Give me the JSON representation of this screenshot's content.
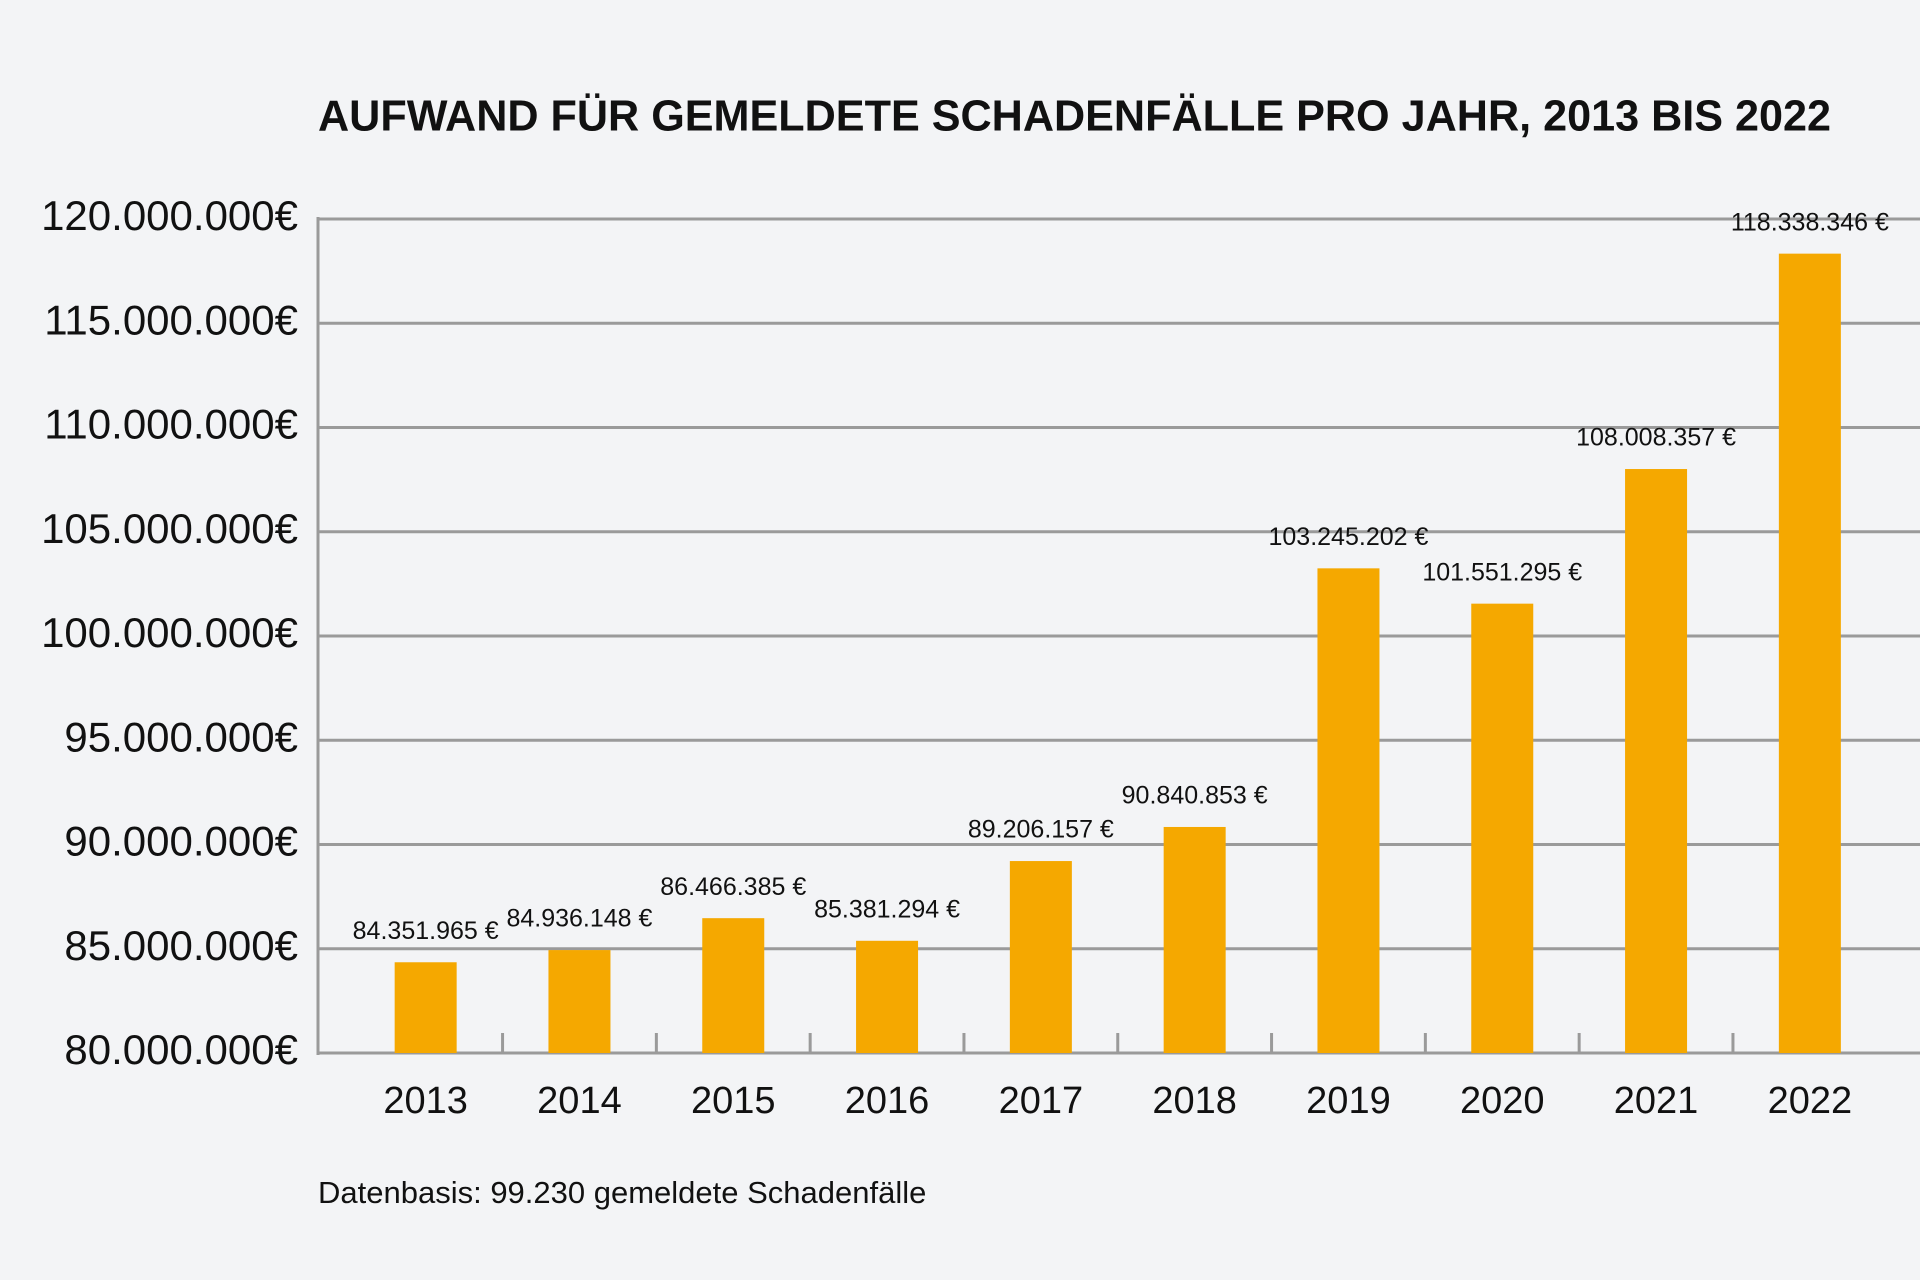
{
  "chart_data": {
    "type": "bar",
    "title": "AUFWAND FÜR GEMELDETE SCHADENFÄLLE PRO JAHR, 2013 BIS 2022",
    "categories": [
      "2013",
      "2014",
      "2015",
      "2016",
      "2017",
      "2018",
      "2019",
      "2020",
      "2021",
      "2022"
    ],
    "values": [
      84351965,
      84936148,
      86466385,
      85381294,
      89206157,
      90840853,
      103245202,
      101551295,
      108008357,
      118338346
    ],
    "value_labels": [
      "84.351.965 €",
      "84.936.148 €",
      "86.466.385 €",
      "85.381.294 €",
      "89.206.157 €",
      "90.840.853 €",
      "103.245.202 €",
      "101.551.295 €",
      "108.008.357 €",
      "118.338.346 €"
    ],
    "color": "#f5a800",
    "ylim": [
      80000000,
      120000000
    ],
    "yticks": [
      {
        "value": 80000000,
        "label": "80.000.000€"
      },
      {
        "value": 85000000,
        "label": "85.000.000€"
      },
      {
        "value": 90000000,
        "label": "90.000.000€"
      },
      {
        "value": 95000000,
        "label": "95.000.000€"
      },
      {
        "value": 100000000,
        "label": "100.000.000€"
      },
      {
        "value": 105000000,
        "label": "105.000.000€"
      },
      {
        "value": 110000000,
        "label": "110.000.000€"
      },
      {
        "value": 115000000,
        "label": "115.000.000€"
      },
      {
        "value": 120000000,
        "label": "120.000.000€"
      }
    ],
    "grid": true,
    "note": "Datenbasis: 99.230 gemeldete Schadenfälle"
  }
}
